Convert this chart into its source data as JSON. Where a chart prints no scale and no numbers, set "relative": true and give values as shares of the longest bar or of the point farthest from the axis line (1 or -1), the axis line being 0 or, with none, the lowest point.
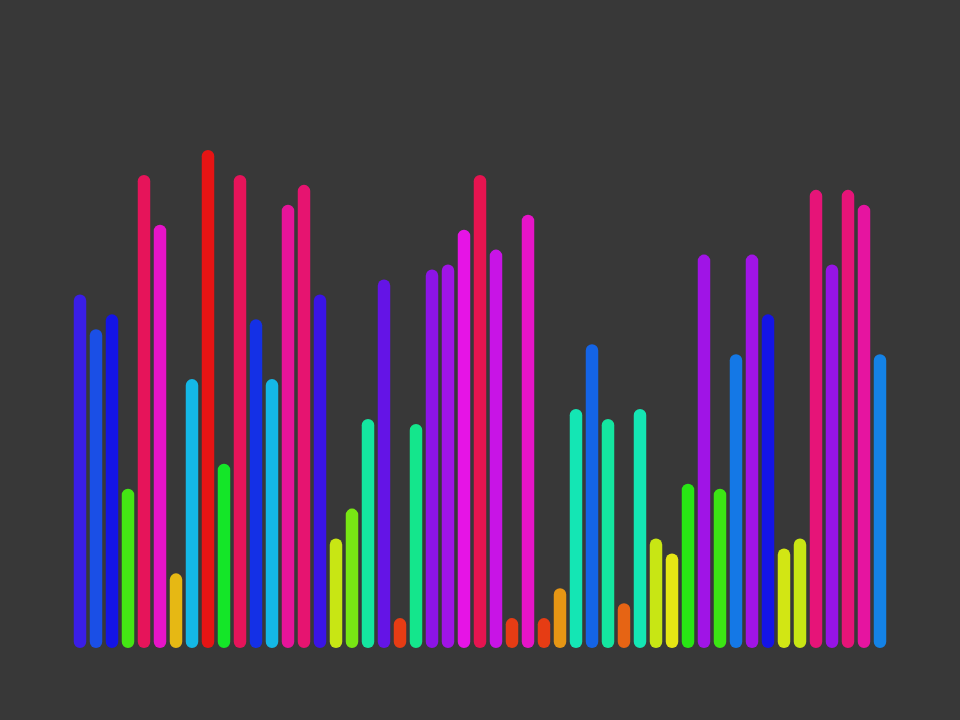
{
  "chart_data": {
    "type": "bar",
    "relative": true,
    "categories": [
      null,
      null,
      null,
      null,
      null,
      null,
      null,
      null,
      null,
      null,
      null,
      null,
      null,
      null,
      null,
      null,
      null,
      null,
      null,
      null,
      null,
      null,
      null,
      null,
      null,
      null,
      null,
      null,
      null,
      null,
      null,
      null,
      null,
      null,
      null,
      null,
      null,
      null,
      null,
      null,
      null,
      null,
      null,
      null,
      null,
      null,
      null,
      null,
      null,
      null,
      null
    ],
    "values": [
      0.71,
      0.64,
      0.67,
      0.32,
      0.95,
      0.85,
      0.15,
      0.54,
      1,
      0.37,
      0.95,
      0.66,
      0.54,
      0.89,
      0.93,
      0.71,
      0.22,
      0.28,
      0.46,
      0.74,
      0.06,
      0.45,
      0.76,
      0.77,
      0.84,
      0.95,
      0.8,
      0.06,
      0.87,
      0.06,
      0.12,
      0.48,
      0.61,
      0.46,
      0.09,
      0.48,
      0.22,
      0.19,
      0.33,
      0.79,
      0.32,
      0.59,
      0.79,
      0.67,
      0.2,
      0.22,
      0.92,
      0.77,
      0.92,
      0.89,
      0.59
    ],
    "colors": [
      "#3a1ee6",
      "#1a4fe6",
      "#1414e6",
      "#44e614",
      "#e6145a",
      "#e614c8",
      "#e6b814",
      "#14b8e6",
      "#e61414",
      "#14e628",
      "#e6145a",
      "#1430e6",
      "#14b8e6",
      "#e6149a",
      "#e61470",
      "#3a14e6",
      "#c8e614",
      "#78e614",
      "#14e6a0",
      "#6414e6",
      "#e63c14",
      "#14e68c",
      "#8c14e6",
      "#a014e6",
      "#e614e6",
      "#e61450",
      "#c814e6",
      "#e63c14",
      "#e614c8",
      "#e63c14",
      "#e69614",
      "#14e6b4",
      "#1464e6",
      "#14e6a0",
      "#e66414",
      "#14e6b4",
      "#c8e614",
      "#e6e614",
      "#28e614",
      "#a014e6",
      "#3ce614",
      "#1478e6",
      "#a014e6",
      "#1414e6",
      "#d2e614",
      "#c8e614",
      "#e61478",
      "#9614e6",
      "#e61478",
      "#e614a0",
      "#1482e6"
    ]
  }
}
